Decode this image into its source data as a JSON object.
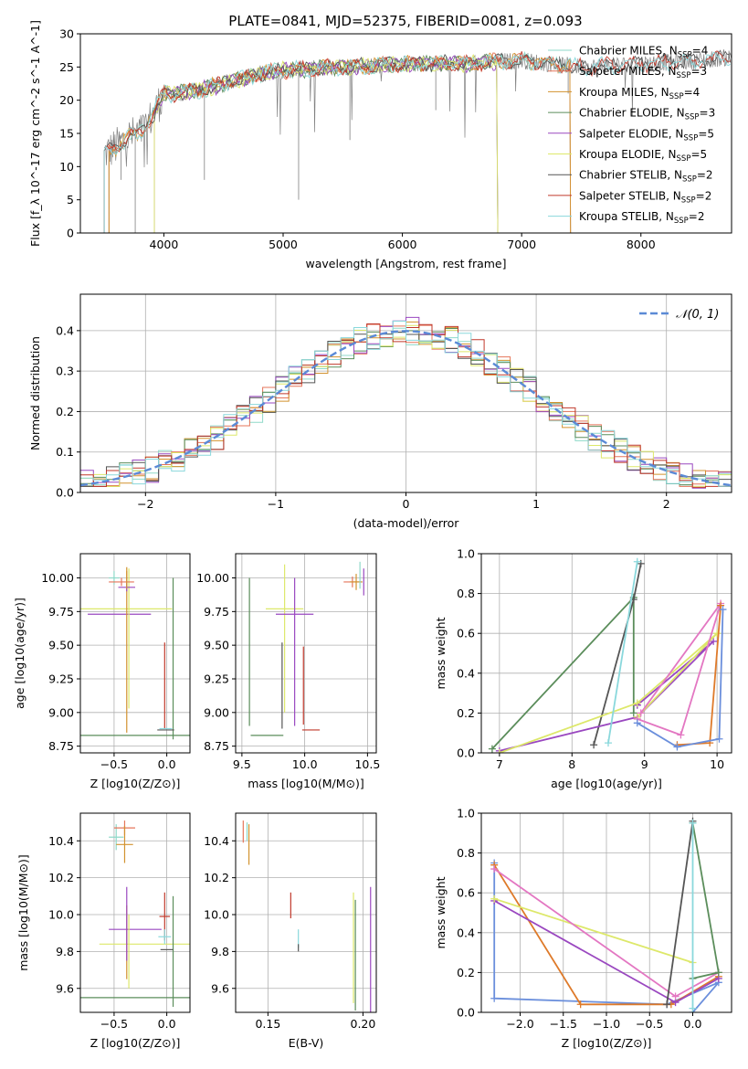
{
  "figure": {
    "title": "PLATE=0841, MJD=52375, FIBERID=0081, z=0.093"
  },
  "colors": {
    "Chabrier MILES": "#8fd9c9",
    "Salpeter MILES": "#e5755a",
    "Kroupa MILES": "#d2922f",
    "Chabrier ELODIE": "#5b8d5b",
    "Salpeter ELODIE": "#9a48c0",
    "Kroupa ELODIE": "#dde86a",
    "Chabrier STELIB": "#555555",
    "Salpeter STELIB": "#c0392b",
    "Kroupa STELIB": "#8ad8dc",
    "spectrum": "#808080",
    "normal": "#5b8ad6",
    "w1": "#6b8fdc",
    "w2": "#de7a2a",
    "w3": "#5b8d5b",
    "w4": "#9a48c0",
    "w5": "#dde86a",
    "w6": "#555555",
    "w7": "#e377c2",
    "w8": "#8ad8dc"
  },
  "chart_data": [
    {
      "type": "line",
      "id": "spectrum",
      "xlabel": "wavelength [Angstrom, rest frame]",
      "ylabel": "Flux [f_λ 10^-17 erg cm^-2 s^-1 A^-1]",
      "xlim": [
        3300,
        8760
      ],
      "ylim": [
        0,
        30
      ],
      "xticks": [
        4000,
        5000,
        6000,
        7000,
        8000
      ],
      "yticks": [
        0,
        5,
        10,
        15,
        20,
        25,
        30
      ],
      "grid": false,
      "legend_position": "right",
      "legend": [
        {
          "name": "Chabrier MILES",
          "nssp": "4"
        },
        {
          "name": "Salpeter MILES",
          "nssp": "3"
        },
        {
          "name": "Kroupa MILES",
          "nssp": "4"
        },
        {
          "name": "Chabrier ELODIE",
          "nssp": "3"
        },
        {
          "name": "Salpeter ELODIE",
          "nssp": "5"
        },
        {
          "name": "Kroupa ELODIE",
          "nssp": "5"
        },
        {
          "name": "Chabrier STELIB",
          "nssp": "2"
        },
        {
          "name": "Salpeter STELIB",
          "nssp": "2"
        },
        {
          "name": "Kroupa STELIB",
          "nssp": "2"
        }
      ],
      "spectrum_envelope": {
        "x": [
          3500,
          3600,
          3700,
          3800,
          3900,
          4000,
          4100,
          4300,
          4500,
          4800,
          5000,
          5500,
          6000,
          6500,
          7000,
          7500,
          8000,
          8500,
          8760
        ],
        "y": [
          12,
          13,
          14.5,
          15,
          17.5,
          21,
          21,
          21.5,
          22.5,
          24,
          24.5,
          25,
          25.5,
          25.5,
          26,
          25,
          25.5,
          26,
          26.5
        ]
      },
      "model_start": {
        "MILES": 3540,
        "ELODIE": 3920,
        "STELIB": 3500
      },
      "model_end": {
        "MILES": 7410,
        "ELODIE": 6800,
        "STELIB": 8760
      }
    },
    {
      "type": "histogram",
      "id": "residuals",
      "xlabel": "(data-model)/error",
      "ylabel": "Normed distribution",
      "xlim": [
        -2.5,
        2.5
      ],
      "ylim": [
        0,
        0.49
      ],
      "xticks": [
        -2,
        -1,
        0,
        1,
        2
      ],
      "yticks": [
        0.0,
        0.1,
        0.2,
        0.3,
        0.4
      ],
      "grid": true,
      "legend": [
        "𝒩(0, 1)"
      ],
      "bin_width": 0.1,
      "normal": {
        "mean": 0,
        "sigma": 1
      }
    },
    {
      "type": "scatter",
      "id": "age-vs-Z",
      "xlabel": "Z [log10(Z/Z⊙)]",
      "ylabel": "age  [log10(age/yr)]",
      "xlim": [
        -0.82,
        0.22
      ],
      "ylim": [
        8.7,
        10.18
      ],
      "xticks": [
        -0.5,
        0.0
      ],
      "yticks": [
        8.75,
        9.0,
        9.25,
        9.5,
        9.75,
        10.0
      ],
      "grid": true,
      "points": [
        {
          "c": "Kroupa ELODIE",
          "x": -0.5,
          "xe": 0.55,
          "y": 9.77,
          "ye": 0
        },
        {
          "c": "Salpeter ELODIE",
          "x": -0.45,
          "xe": 0.3,
          "y": 9.73,
          "ye": 0
        },
        {
          "c": "Chabrier ELODIE",
          "x": -0.3,
          "xe": 0.52,
          "y": 8.83,
          "ye": 0
        },
        {
          "c": "Chabrier ELODIE",
          "x": 0.06,
          "xe": 0,
          "y": 9.4,
          "ye": 0.6
        },
        {
          "c": "Kroupa MILES",
          "x": -0.38,
          "xe": 0,
          "y": 9.45,
          "ye": 0.6
        },
        {
          "c": "Kroupa ELODIE",
          "x": -0.36,
          "xe": 0,
          "y": 9.55,
          "ye": 0.52
        },
        {
          "c": "Chabrier MILES",
          "x": -0.5,
          "xe": 0.05,
          "y": 10.0,
          "ye": 0.05
        },
        {
          "c": "Salpeter MILES",
          "x": -0.43,
          "xe": 0.12,
          "y": 9.97,
          "ye": 0.03
        },
        {
          "c": "Salpeter ELODIE",
          "x": -0.38,
          "xe": 0.08,
          "y": 9.93,
          "ye": 0.03
        },
        {
          "c": "Kroupa MILES",
          "x": -0.38,
          "xe": 0,
          "y": 10.0,
          "ye": 0.08
        },
        {
          "c": "Chabrier STELIB",
          "x": -0.01,
          "xe": 0.08,
          "y": 8.87,
          "ye": 0
        },
        {
          "c": "Salpeter STELIB",
          "x": -0.02,
          "xe": 0,
          "y": 9.2,
          "ye": 0.32
        },
        {
          "c": "Kroupa STELIB",
          "x": -0.01,
          "xe": 0.06,
          "y": 8.88,
          "ye": 0
        }
      ]
    },
    {
      "type": "scatter",
      "id": "age-vs-mass",
      "xlabel": "mass [log10(M/M⊙)]",
      "ylabel": "",
      "xlim": [
        9.45,
        10.57
      ],
      "ylim": [
        8.7,
        10.18
      ],
      "xticks": [
        9.5,
        10.0,
        10.5
      ],
      "yticks": [
        8.75,
        9.0,
        9.25,
        9.5,
        9.75,
        10.0
      ],
      "grid": true,
      "points": [
        {
          "c": "Chabrier ELODIE",
          "x": 9.56,
          "xe": 0,
          "y": 9.45,
          "ye": 0.55
        },
        {
          "c": "Chabrier ELODIE",
          "x": 9.7,
          "xe": 0.13,
          "y": 8.83,
          "ye": 0
        },
        {
          "c": "Kroupa ELODIE",
          "x": 9.84,
          "xe": 0.15,
          "y": 9.77,
          "ye": 0
        },
        {
          "c": "Kroupa ELODIE",
          "x": 9.84,
          "xe": 0,
          "y": 9.55,
          "ye": 0.55
        },
        {
          "c": "Salpeter ELODIE",
          "x": 9.92,
          "xe": 0.15,
          "y": 9.73,
          "ye": 0
        },
        {
          "c": "Salpeter ELODIE",
          "x": 9.92,
          "xe": 0,
          "y": 9.45,
          "ye": 0.55
        },
        {
          "c": "Chabrier STELIB",
          "x": 9.82,
          "xe": 0,
          "y": 9.2,
          "ye": 0.32
        },
        {
          "c": "Salpeter STELIB",
          "x": 9.99,
          "xe": 0,
          "y": 9.2,
          "ye": 0.29
        },
        {
          "c": "Salpeter STELIB",
          "x": 10.05,
          "xe": 0.07,
          "y": 8.87,
          "ye": 0
        },
        {
          "c": "Kroupa STELIB",
          "x": 9.87,
          "xe": 0,
          "y": 8.87,
          "ye": 0
        },
        {
          "c": "Salpeter MILES",
          "x": 10.38,
          "xe": 0.07,
          "y": 9.97,
          "ye": 0.04
        },
        {
          "c": "Kroupa MILES",
          "x": 10.41,
          "xe": 0.05,
          "y": 9.97,
          "ye": 0.06
        },
        {
          "c": "Chabrier MILES",
          "x": 10.44,
          "xe": 0,
          "y": 10.02,
          "ye": 0.1
        },
        {
          "c": "Salpeter ELODIE",
          "x": 10.47,
          "xe": 0,
          "y": 9.97,
          "ye": 0.1
        }
      ]
    },
    {
      "type": "line",
      "id": "weight-vs-age",
      "xlabel": "age  [log10(age/yr)]",
      "ylabel": "mass weight",
      "xlim": [
        6.75,
        10.2
      ],
      "ylim": [
        0,
        1.0
      ],
      "xticks": [
        7,
        8,
        9,
        10
      ],
      "yticks": [
        0.0,
        0.2,
        0.4,
        0.6,
        0.8,
        1.0
      ],
      "grid": true,
      "series": [
        {
          "c": "w3",
          "x": [
            6.9,
            8.85,
            8.85
          ],
          "y": [
            0.02,
            0.78,
            0.2
          ]
        },
        {
          "c": "w6",
          "x": [
            8.3,
            8.85,
            8.95
          ],
          "y": [
            0.04,
            0.77,
            0.95
          ]
        },
        {
          "c": "w4",
          "x": [
            7.0,
            8.9,
            9.95,
            8.9,
            8.9
          ],
          "y": [
            0.01,
            0.18,
            0.56,
            0.24,
            0.24
          ]
        },
        {
          "c": "w5",
          "x": [
            7.0,
            8.9,
            10.0,
            8.9
          ],
          "y": [
            0.0,
            0.25,
            0.6,
            0.18
          ]
        },
        {
          "c": "w7",
          "x": [
            8.9,
            9.5,
            10.05,
            8.95
          ],
          "y": [
            0.17,
            0.09,
            0.75,
            0.2
          ]
        },
        {
          "c": "w2",
          "x": [
            9.45,
            9.9,
            10.05
          ],
          "y": [
            0.04,
            0.05,
            0.74
          ]
        },
        {
          "c": "w1",
          "x": [
            8.9,
            9.45,
            10.03,
            10.08
          ],
          "y": [
            0.15,
            0.03,
            0.07,
            0.72
          ]
        },
        {
          "c": "w8",
          "x": [
            8.5,
            8.9
          ],
          "y": [
            0.05,
            0.96
          ]
        }
      ]
    },
    {
      "type": "scatter",
      "id": "mass-vs-Z",
      "xlabel": "Z [log10(Z/Z⊙)]",
      "ylabel": "mass [log10(M/M⊙)]",
      "xlim": [
        -0.82,
        0.22
      ],
      "ylim": [
        9.47,
        10.55
      ],
      "xticks": [
        -0.5,
        0.0
      ],
      "yticks": [
        9.6,
        9.8,
        10.0,
        10.2,
        10.4
      ],
      "grid": true,
      "points": [
        {
          "c": "Chabrier ELODIE",
          "x": -0.3,
          "xe": 0.52,
          "y": 9.55,
          "ye": 0
        },
        {
          "c": "Kroupa ELODIE",
          "x": -0.2,
          "xe": 0.44,
          "y": 9.84,
          "ye": 0
        },
        {
          "c": "Salpeter ELODIE",
          "x": -0.3,
          "xe": 0.25,
          "y": 9.92,
          "ye": 0
        },
        {
          "c": "Chabrier ELODIE",
          "x": 0.06,
          "xe": 0,
          "y": 9.8,
          "ye": 0.3
        },
        {
          "c": "Kroupa MILES",
          "x": -0.38,
          "xe": 0,
          "y": 9.85,
          "ye": 0.2
        },
        {
          "c": "Kroupa ELODIE",
          "x": -0.36,
          "xe": 0,
          "y": 9.8,
          "ye": 0.2
        },
        {
          "c": "Salpeter ELODIE",
          "x": -0.38,
          "xe": 0,
          "y": 9.95,
          "ye": 0.2
        },
        {
          "c": "Chabrier MILES",
          "x": -0.48,
          "xe": 0.07,
          "y": 10.42,
          "ye": 0.07
        },
        {
          "c": "Salpeter MILES",
          "x": -0.4,
          "xe": 0.1,
          "y": 10.47,
          "ye": 0.04
        },
        {
          "c": "Kroupa MILES",
          "x": -0.4,
          "xe": 0.08,
          "y": 10.38,
          "ye": 0.1
        },
        {
          "c": "Salpeter STELIB",
          "x": -0.02,
          "xe": 0.05,
          "y": 9.99,
          "ye": 0.13
        },
        {
          "c": "Chabrier STELIB",
          "x": 0.0,
          "xe": 0.06,
          "y": 9.81,
          "ye": 0
        },
        {
          "c": "Kroupa STELIB",
          "x": -0.02,
          "xe": 0.06,
          "y": 9.88,
          "ye": 0.04
        }
      ]
    },
    {
      "type": "scatter",
      "id": "mass-vs-EBV",
      "xlabel": "E(B-V)",
      "ylabel": "",
      "xlim": [
        0.133,
        0.207
      ],
      "ylim": [
        9.47,
        10.55
      ],
      "xticks": [
        0.15,
        0.2
      ],
      "yticks": [
        9.6,
        9.8,
        10.0,
        10.2,
        10.4
      ],
      "grid": true,
      "points": [
        {
          "c": "Salpeter MILES",
          "x": 0.137,
          "xe": 0,
          "y": 10.45,
          "ye": 0.06
        },
        {
          "c": "Chabrier MILES",
          "x": 0.139,
          "xe": 0,
          "y": 10.45,
          "ye": 0.05
        },
        {
          "c": "Kroupa MILES",
          "x": 0.14,
          "xe": 0,
          "y": 10.38,
          "ye": 0.11
        },
        {
          "c": "Salpeter STELIB",
          "x": 0.162,
          "xe": 0,
          "y": 10.05,
          "ye": 0.07
        },
        {
          "c": "Kroupa STELIB",
          "x": 0.166,
          "xe": 0,
          "y": 9.87,
          "ye": 0.05
        },
        {
          "c": "Chabrier STELIB",
          "x": 0.166,
          "xe": 0,
          "y": 9.82,
          "ye": 0.02
        },
        {
          "c": "Kroupa ELODIE",
          "x": 0.195,
          "xe": 0,
          "y": 9.82,
          "ye": 0.3
        },
        {
          "c": "Chabrier ELODIE",
          "x": 0.196,
          "xe": 0,
          "y": 9.78,
          "ye": 0.3
        },
        {
          "c": "Salpeter ELODIE",
          "x": 0.204,
          "xe": 0,
          "y": 9.81,
          "ye": 0.34
        }
      ]
    },
    {
      "type": "line",
      "id": "weight-vs-Z",
      "xlabel": "Z [log10(Z/Z⊙)]",
      "ylabel": "mass weight",
      "xlim": [
        -2.45,
        0.45
      ],
      "ylim": [
        0,
        1.0
      ],
      "xticks": [
        -2.0,
        -1.5,
        -1.0,
        -0.5,
        0.0
      ],
      "yticks": [
        0.0,
        0.2,
        0.4,
        0.6,
        0.8,
        1.0
      ],
      "grid": true,
      "series": [
        {
          "c": "w1",
          "x": [
            -2.3,
            -2.3,
            -0.3,
            0.3,
            0.0
          ],
          "y": [
            0.75,
            0.07,
            0.04,
            0.15,
            0.0
          ]
        },
        {
          "c": "w2",
          "x": [
            -2.3,
            -1.3,
            -0.25,
            0.3
          ],
          "y": [
            0.74,
            0.04,
            0.04,
            0.18
          ]
        },
        {
          "c": "w4",
          "x": [
            -2.3,
            -0.2,
            0.3
          ],
          "y": [
            0.56,
            0.05,
            0.17
          ]
        },
        {
          "c": "w5",
          "x": [
            -2.3,
            0.0
          ],
          "y": [
            0.57,
            0.25
          ]
        },
        {
          "c": "w7",
          "x": [
            -2.3,
            -0.2,
            0.3
          ],
          "y": [
            0.72,
            0.08,
            0.2
          ]
        },
        {
          "c": "w3",
          "x": [
            0.0,
            0.3,
            0.0
          ],
          "y": [
            0.95,
            0.2,
            0.17
          ]
        },
        {
          "c": "w6",
          "x": [
            -0.3,
            0.0
          ],
          "y": [
            0.04,
            0.96
          ]
        },
        {
          "c": "w8",
          "x": [
            0.0,
            0.0
          ],
          "y": [
            0.02,
            0.95
          ]
        }
      ]
    }
  ]
}
